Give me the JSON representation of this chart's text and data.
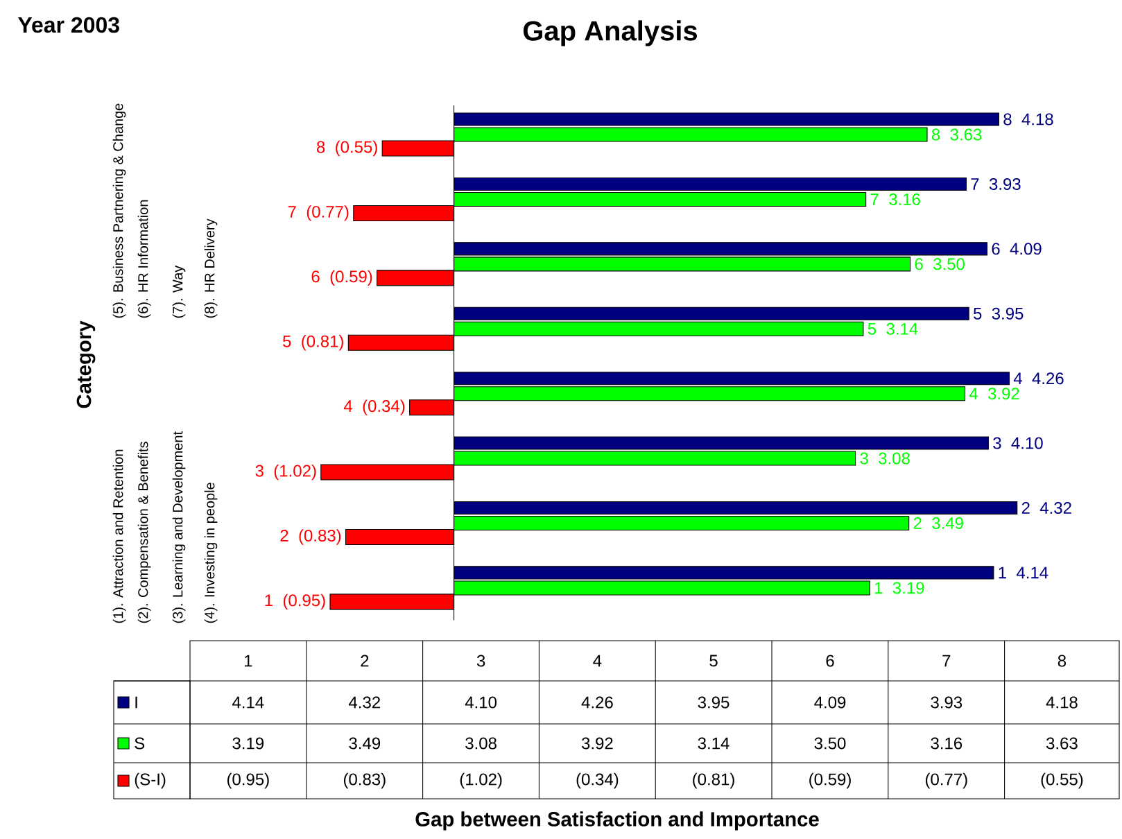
{
  "chart_data": {
    "type": "bar",
    "orientation": "horizontal",
    "title": "Gap Analysis",
    "annotations": [
      "Year 2003",
      "Category",
      "Gap between Satisfaction and Importance",
      "(1). Attraction and Retention",
      "(2). Compensation & Benefits",
      "(3). Learning and Development",
      "(4). Investing in people",
      "(5). Business Partnering & Change",
      "(6). HR Information",
      "(7). Way",
      "(8). HR Delivery"
    ],
    "categories": [
      "8",
      "7",
      "6",
      "5",
      "4",
      "3",
      "2",
      "1"
    ],
    "series": [
      {
        "name": "I",
        "color": "#000080",
        "values": [
          4.18,
          3.93,
          4.09,
          3.95,
          4.26,
          4.1,
          4.32,
          4.14
        ],
        "value_labels": [
          "4.18",
          "3.93",
          "4.09",
          "3.95",
          "4.26",
          "4.10",
          "4.32",
          "4.14"
        ]
      },
      {
        "name": "S",
        "color": "#00ff00",
        "values": [
          3.63,
          3.16,
          3.5,
          3.14,
          3.92,
          3.08,
          3.49,
          3.19
        ],
        "value_labels": [
          "3.63",
          "3.16",
          "3.50",
          "3.14",
          "3.92",
          "3.08",
          "3.49",
          "3.19"
        ]
      },
      {
        "name": "(S-I)",
        "color": "#ff0000",
        "values": [
          -0.55,
          -0.77,
          -0.59,
          -0.81,
          -0.34,
          -1.02,
          -0.83,
          -0.95
        ],
        "value_labels": [
          "(0.55)",
          "(0.77)",
          "(0.59)",
          "(0.81)",
          "(0.34)",
          "(1.02)",
          "(0.83)",
          "(0.95)"
        ]
      }
    ],
    "legend": "bottom left"
  }
}
